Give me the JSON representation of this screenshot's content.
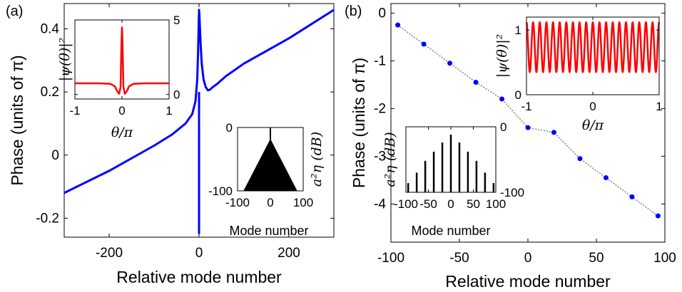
{
  "colors": {
    "main_curve": "#0000ff",
    "inset_curve": "#ff0000",
    "spectrum": "#000000",
    "dashed_line": "#808080"
  },
  "panels": [
    {
      "label": "(a)"
    },
    {
      "label": "(b)"
    }
  ],
  "chart_data": [
    {
      "id": "a-main",
      "type": "line",
      "xlabel": "Relative mode number",
      "ylabel": "Phase (units of π)",
      "xlim": [
        -300,
        300
      ],
      "ylim": [
        -0.26,
        0.48
      ],
      "xticks": [
        -200,
        0,
        200
      ],
      "yticks": [
        -0.2,
        0,
        0.2,
        0.4
      ],
      "yticklabels": [
        "-0.2",
        "0",
        "0.2",
        "0.4"
      ],
      "series": [
        {
          "x": [
            -300,
            -200,
            -100,
            -60,
            -30,
            -15,
            -8,
            -4,
            -2,
            -1,
            0,
            1,
            2,
            4,
            6,
            10,
            15,
            20,
            25,
            30,
            40,
            60,
            100,
            200,
            300
          ],
          "y": [
            -0.12,
            -0.05,
            0.03,
            0.065,
            0.1,
            0.13,
            0.17,
            0.24,
            0.33,
            0.4,
            0.46,
            0.44,
            0.4,
            0.34,
            0.29,
            0.24,
            0.215,
            0.205,
            0.208,
            0.215,
            0.225,
            0.25,
            0.29,
            0.37,
            0.46
          ]
        }
      ],
      "spike": {
        "x": 0,
        "y_min": -0.25
      }
    },
    {
      "id": "a-inset-wavefunction",
      "type": "line",
      "xlabel": "θ/π",
      "ylabel": "|ψ(θ)|²",
      "xlim": [
        -1,
        1
      ],
      "ylim": [
        -0.3,
        5
      ],
      "xticks": [
        -1,
        0,
        1
      ],
      "yticks": [
        0,
        5
      ],
      "yticks_side": "right",
      "series": [
        {
          "x": [
            -1,
            -0.5,
            -0.25,
            -0.15,
            -0.1,
            -0.06,
            -0.03,
            -0.01,
            0,
            0.01,
            0.03,
            0.06,
            0.1,
            0.15,
            0.25,
            0.5,
            1
          ],
          "y": [
            0.75,
            0.75,
            0.72,
            0.55,
            0.2,
            0.05,
            0.5,
            3.5,
            4.5,
            3.5,
            0.5,
            0.05,
            0.2,
            0.55,
            0.72,
            0.75,
            0.75
          ]
        }
      ]
    },
    {
      "id": "a-inset-spectrum",
      "type": "bar",
      "xlabel": "Mode number",
      "ylabel": "a²η (dB)",
      "xlim": [
        -100,
        100
      ],
      "ylim": [
        -100,
        0
      ],
      "xticks": [
        -100,
        0,
        100
      ],
      "yticks": [
        0,
        -100
      ],
      "yticks_side": "left",
      "y_axis_label_side": "right",
      "envelope": {
        "peak_x": 0,
        "peak_y": -18,
        "slope_db_per_mode": 1.0
      },
      "central_line": {
        "x": 0,
        "y": 0
      }
    },
    {
      "id": "b-main",
      "type": "scatter",
      "xlabel": "Relative mode number",
      "ylabel": "Phase (units of π)",
      "xlim": [
        -100,
        100
      ],
      "ylim": [
        -4.8,
        0.2
      ],
      "xticks": [
        -100,
        -50,
        0,
        50,
        100
      ],
      "yticks": [
        0,
        -1,
        -2,
        -3,
        -4
      ],
      "yticklabels": [
        "0",
        "-1",
        "-2",
        "-3",
        "-4"
      ],
      "series": [
        {
          "x": [
            -95,
            -76,
            -57,
            -38,
            -19,
            0,
            19,
            38,
            57,
            76,
            95
          ],
          "y": [
            -0.25,
            -0.65,
            -1.05,
            -1.45,
            -1.8,
            -2.4,
            -2.5,
            -3.05,
            -3.45,
            -3.85,
            -4.25
          ]
        }
      ]
    },
    {
      "id": "b-inset-wavefunction",
      "type": "line",
      "xlabel": "θ/π",
      "ylabel": "|ψ(θ)|²",
      "xlim": [
        -1,
        1
      ],
      "ylim": [
        0,
        1.2
      ],
      "xticks": [
        -1,
        0,
        1
      ],
      "yticks": [
        0,
        1
      ],
      "yticks_side": "left",
      "oscillation": {
        "periods": 20,
        "min": 0.35,
        "max": 1.12
      }
    },
    {
      "id": "b-inset-spectrum",
      "type": "bar",
      "xlabel": "Mode number",
      "ylabel": "a²η (dB)",
      "xlim": [
        -100,
        100
      ],
      "ylim": [
        -100,
        0
      ],
      "xticks": [
        -100,
        -50,
        0,
        50,
        100
      ],
      "yticks": [
        0,
        -100
      ],
      "yticks_side": "right",
      "y_axis_label_side": "left",
      "lines": {
        "x": [
          -95,
          -76,
          -57,
          -38,
          -19,
          0,
          19,
          38,
          57,
          76,
          95
        ],
        "y": [
          -86,
          -70,
          -52,
          -38,
          -24,
          -12,
          -24,
          -38,
          -52,
          -70,
          -86
        ]
      }
    }
  ]
}
